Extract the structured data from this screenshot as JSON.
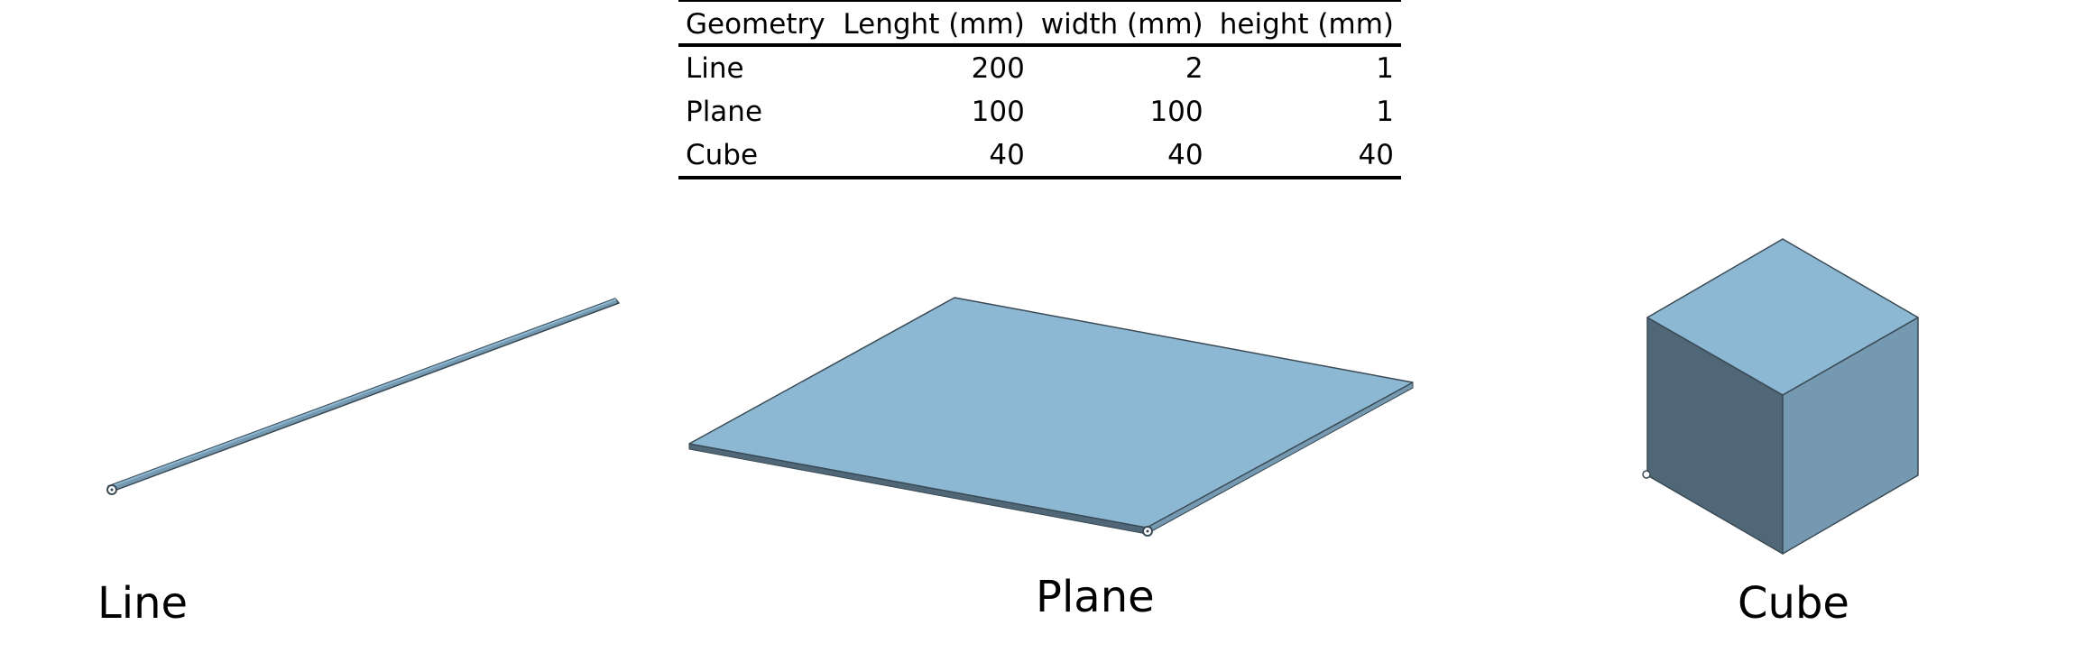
{
  "table": {
    "headers": [
      "Geometry",
      "Lenght (mm)",
      "width (mm)",
      "height (mm)"
    ],
    "rows": [
      [
        "Line",
        "200",
        "2",
        "1"
      ],
      [
        "Plane",
        "100",
        "100",
        "1"
      ],
      [
        "Cube",
        "40",
        "40",
        "40"
      ]
    ]
  },
  "labels": {
    "line": "Line",
    "plane": "Plane",
    "cube": "Cube"
  },
  "colors": {
    "top_face": "#8cb8d3",
    "left_face": "#4f6777",
    "right_face": "#7599b0",
    "edge": "#3a4a55"
  }
}
